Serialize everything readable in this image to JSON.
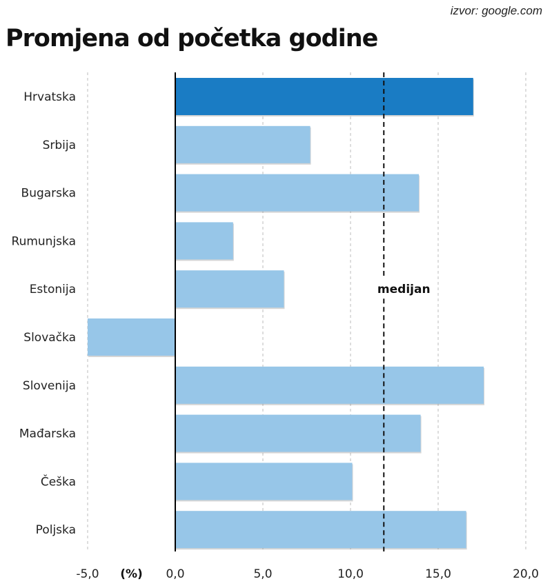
{
  "source": "izvor: google.com",
  "chart_data": {
    "type": "bar",
    "orientation": "horizontal",
    "title": "Promjena od početka godine",
    "categories": [
      "Hrvatska",
      "Srbija",
      "Bugarska",
      "Rumunjska",
      "Estonija",
      "Slovačka",
      "Slovenija",
      "Mađarska",
      "Češka",
      "Poljska"
    ],
    "values": [
      17.0,
      7.7,
      13.9,
      3.3,
      6.2,
      -5.0,
      17.6,
      14.0,
      10.1,
      16.6
    ],
    "highlight": "Hrvatska",
    "unit_label": "(%)",
    "xlim": [
      -5.0,
      20.0
    ],
    "ticks": [
      -5.0,
      0.0,
      5.0,
      10.0,
      15.0,
      20.0
    ],
    "tick_labels": [
      "-5,0",
      "0,0",
      "5,0",
      "10,0",
      "15,0",
      "20,0"
    ],
    "median": {
      "value": 11.9,
      "label": "medijan"
    },
    "grid": true,
    "colors": {
      "highlight": "#1a7cc4",
      "bar": "#97c6e8",
      "grid": "#bbbbbb",
      "axis": "#000000"
    }
  }
}
